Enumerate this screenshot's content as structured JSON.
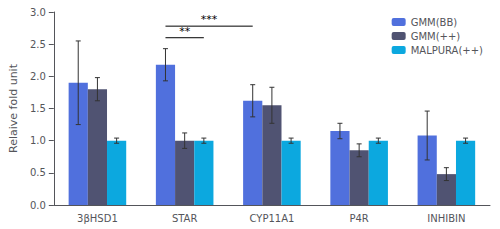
{
  "chart_data": {
    "type": "bar",
    "categories": [
      "3βHSD1",
      "STAR",
      "CYP11A1",
      "P4R",
      "INHIBIN"
    ],
    "ylabel": "Relaive fold unit",
    "ylim": [
      0.0,
      3.0
    ],
    "yticks": [
      {
        "value": 0,
        "label": "0.0"
      },
      0.5,
      {
        "value": 1,
        "label": "1.0"
      },
      1.5,
      {
        "value": 2,
        "label": "2.0"
      },
      2.5,
      {
        "value": 3,
        "label": "3.0"
      }
    ],
    "series": [
      {
        "name": "GMM(BB)",
        "values": [
          1.9,
          2.18,
          1.62,
          1.15,
          1.08
        ],
        "errors": [
          0.65,
          0.25,
          0.25,
          0.12,
          0.38
        ]
      },
      {
        "name": "GMM(++)",
        "values": [
          1.8,
          1.0,
          1.55,
          0.85,
          0.48
        ],
        "errors": [
          0.18,
          0.12,
          0.28,
          0.1,
          0.1
        ]
      },
      {
        "name": "MALPURA(++)",
        "values": [
          1.0,
          1.0,
          1.0,
          1.0,
          1.0
        ],
        "errors": [
          0.04,
          0.04,
          0.04,
          0.04,
          0.04
        ]
      }
    ],
    "annotations": [
      {
        "label": "***",
        "y": 2.78,
        "from": {
          "category": "STAR",
          "series": "GMM(BB)"
        },
        "to": {
          "category": "CYP11A1",
          "series": "GMM(BB)"
        }
      },
      {
        "label": "**",
        "y": 2.6,
        "from": {
          "category": "STAR",
          "series": "GMM(BB)"
        },
        "to": {
          "category": "STAR",
          "series": "MALPURA(++)"
        }
      }
    ],
    "legend": "upper right",
    "grid": false
  }
}
